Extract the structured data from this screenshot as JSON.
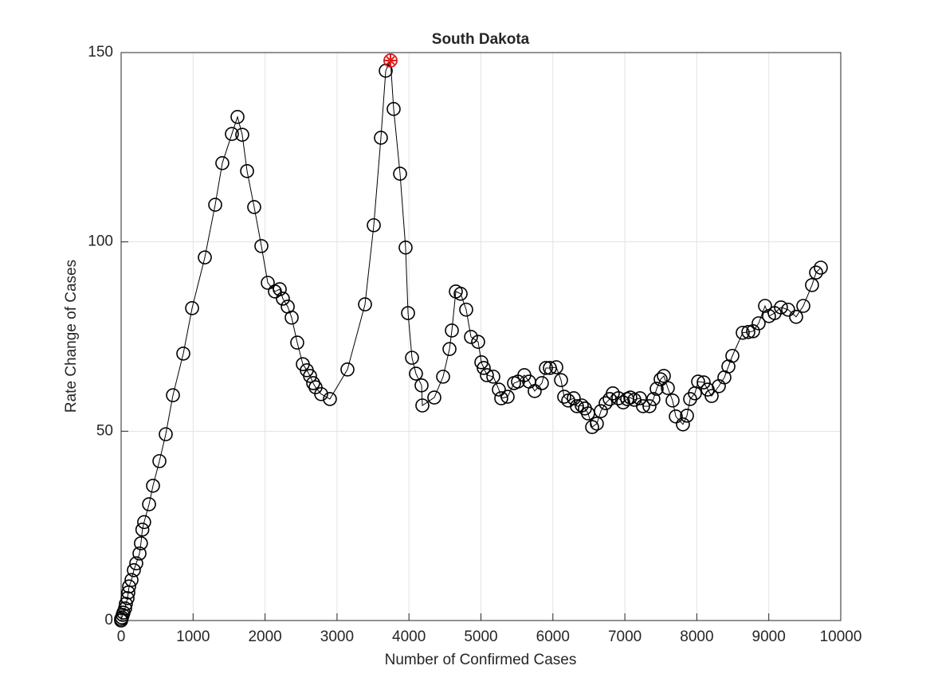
{
  "chart_data": {
    "type": "line",
    "title": "South Dakota",
    "x_label": "Number of Confirmed Cases",
    "y_label": "Rate Change of Cases",
    "x": [
      0,
      0,
      11,
      22,
      33,
      55,
      66,
      89,
      100,
      111,
      144,
      177,
      210,
      255,
      275,
      295,
      320,
      388,
      443,
      532,
      620,
      720,
      864,
      986,
      1163,
      1307,
      1406,
      1539,
      1617,
      1683,
      1750,
      1849,
      1949,
      2038,
      2137,
      2204,
      2248,
      2315,
      2370,
      2447,
      2525,
      2580,
      2625,
      2669,
      2702,
      2780,
      2901,
      3145,
      3389,
      3511,
      3610,
      3677,
      3743,
      3787,
      3876,
      3953,
      3987,
      4042,
      4097,
      4175,
      4186,
      4352,
      4474,
      4563,
      4596,
      4651,
      4718,
      4795,
      4862,
      4961,
      5006,
      5039,
      5083,
      5172,
      5249,
      5282,
      5371,
      5460,
      5515,
      5603,
      5670,
      5747,
      5847,
      5903,
      5958,
      6047,
      6113,
      6157,
      6213,
      6290,
      6334,
      6401,
      6445,
      6489,
      6545,
      6611,
      6667,
      6733,
      6789,
      6833,
      6910,
      6977,
      7032,
      7076,
      7132,
      7209,
      7253,
      7342,
      7397,
      7442,
      7497,
      7542,
      7597,
      7663,
      7708,
      7807,
      7863,
      7907,
      7973,
      8018,
      8095,
      8151,
      8206,
      8306,
      8383,
      8439,
      8494,
      8638,
      8716,
      8782,
      8859,
      8948,
      9003,
      9081,
      9169,
      9269,
      9380,
      9480,
      9601,
      9657,
      9723
    ],
    "values": [
      0,
      0.4,
      0.8,
      1.5,
      2.1,
      3.2,
      4.4,
      5.9,
      7.4,
      9,
      10.7,
      13.3,
      15.1,
      17.7,
      20.4,
      24,
      26,
      30.7,
      35.6,
      42.1,
      49.2,
      59.5,
      70.5,
      82.5,
      95.9,
      109.8,
      120.8,
      128.5,
      133,
      128.3,
      118.7,
      109.2,
      98.9,
      89.2,
      86.9,
      87.5,
      85,
      82.9,
      80,
      73.4,
      67.7,
      66.1,
      64.6,
      62.7,
      61.6,
      59.8,
      58.5,
      66.3,
      83.5,
      104.4,
      127.5,
      145.2,
      147.9,
      135.1,
      118,
      98.5,
      81.2,
      69.4,
      65.2,
      62.1,
      56.8,
      58.9,
      64.4,
      71.7,
      76.6,
      86.9,
      86.3,
      82.1,
      74.9,
      73.6,
      68.2,
      66.7,
      64.8,
      64.4,
      61,
      58.7,
      59.1,
      62.7,
      63.1,
      64.8,
      63.1,
      60.6,
      62.7,
      66.7,
      66.7,
      66.9,
      63.5,
      59.1,
      58.1,
      58.7,
      56.6,
      56.8,
      56,
      54.7,
      51.1,
      52,
      55.3,
      57.4,
      58.5,
      60,
      58.7,
      57.6,
      58.5,
      58.9,
      58.3,
      58.7,
      56.6,
      56.6,
      58.5,
      61.2,
      63.7,
      64.6,
      61.4,
      58.1,
      53.9,
      51.8,
      54.1,
      58.5,
      60,
      63.1,
      62.9,
      61,
      59.3,
      61.9,
      64.2,
      67.1,
      69.9,
      76,
      76.2,
      76.4,
      78.5,
      83.1,
      80.4,
      81.2,
      82.7,
      82.1,
      80.2,
      83.1,
      88.6,
      91.9,
      93.2
    ],
    "color": "#000000",
    "marker": "circle",
    "highlight": {
      "x": 3743,
      "y": 147.9,
      "color": "#e41a1c"
    },
    "xlim": [
      0,
      10000
    ],
    "xticks": [
      0,
      1000,
      2000,
      3000,
      4000,
      5000,
      6000,
      7000,
      8000,
      9000,
      10000
    ],
    "ylim": [
      0,
      150
    ],
    "yticks": [
      0,
      50,
      100,
      150
    ],
    "grid": true
  }
}
